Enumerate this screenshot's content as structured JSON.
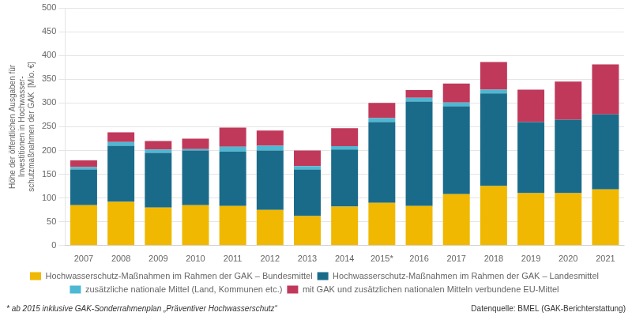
{
  "chart_data": {
    "type": "bar",
    "stacked": true,
    "categories": [
      "2007",
      "2008",
      "2009",
      "2010",
      "2011",
      "2012",
      "2013",
      "2014",
      "2015*",
      "2016",
      "2017",
      "2018",
      "2019",
      "2020",
      "2021"
    ],
    "series": [
      {
        "name": "Hochwasserschutz-Maßnahmen im Rahmen der GAK – Bundesmittel",
        "color": "#f0b800",
        "values": [
          85,
          92,
          80,
          85,
          83,
          75,
          62,
          82,
          90,
          83,
          108,
          125,
          110,
          110,
          118
        ]
      },
      {
        "name": "Hochwasserschutz-Maßnahmen im Rahmen der GAK – Landesmittel",
        "color": "#1a6b8a",
        "values": [
          75,
          118,
          115,
          115,
          115,
          125,
          98,
          120,
          170,
          220,
          185,
          195,
          150,
          155,
          158
        ]
      },
      {
        "name": "zusätzliche nationale Mittel (Land, Kommunen etc.)",
        "color": "#4db8d4",
        "values": [
          5,
          8,
          7,
          3,
          10,
          10,
          7,
          7,
          8,
          8,
          8,
          8,
          0,
          0,
          0
        ]
      },
      {
        "name": "mit GAK und zusätzlichen nationalen Mitteln verbundene EU-Mittel",
        "color": "#c0395a",
        "values": [
          14,
          20,
          18,
          22,
          40,
          32,
          33,
          38,
          32,
          16,
          40,
          58,
          68,
          80,
          105
        ]
      }
    ],
    "ylabel": "Höhe der öffentlichen Ausgaben für\nInvestitionen in Hochwasser-\nschutzmaßnahmen der GAK  [Mio. €]",
    "ylim": [
      0,
      500
    ],
    "yticks": [
      0,
      50,
      100,
      150,
      200,
      250,
      300,
      350,
      400,
      450,
      500
    ],
    "grid": true,
    "legend": "bottom",
    "annotations": [
      "* ab 2015 inklusive GAK-Sonderrahmenplan „Präventiver Hochwasserschutz“",
      "Datenquelle: BMEL (GAK-Berichterstattung)"
    ]
  }
}
